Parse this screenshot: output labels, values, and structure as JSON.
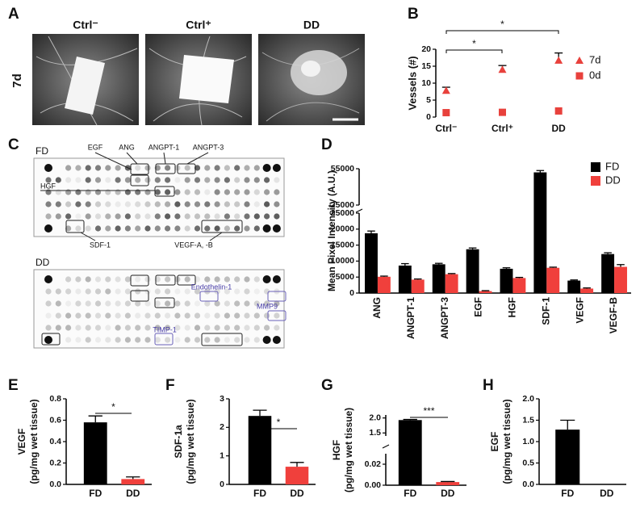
{
  "panels": {
    "A": {
      "label": "A",
      "side_label": "7d",
      "images": [
        "Ctrl⁻",
        "Ctrl⁺",
        "DD"
      ]
    },
    "C": {
      "label": "C",
      "blots": [
        {
          "name": "FD",
          "labels": [
            "EGF",
            "ANG",
            "ANGPT-1",
            "ANGPT-3",
            "HGF",
            "SDF-1",
            "VEGF-A, -B"
          ]
        },
        {
          "name": "DD",
          "labels": [
            "Endothelin-1",
            "MMP9",
            "TIMP-1"
          ]
        }
      ]
    }
  },
  "chart_data": [
    {
      "panel": "B",
      "type": "scatter",
      "ylabel": "Vessels (#)",
      "categories": [
        "Ctrl⁻",
        "Ctrl⁺",
        "DD"
      ],
      "ylim": [
        0,
        20
      ],
      "yticks": [
        0,
        5,
        10,
        15,
        20
      ],
      "series": [
        {
          "name": "7d",
          "color": "#e8413c",
          "marker": "triangle",
          "values": [
            7.8,
            14,
            16.7
          ],
          "errors": [
            1,
            1.2,
            2.2
          ]
        },
        {
          "name": "0d",
          "color": "#e8413c",
          "marker": "square",
          "values": [
            1.3,
            1.4,
            1.8
          ]
        }
      ],
      "legend": "right",
      "annotations": [
        "*",
        "*"
      ]
    },
    {
      "panel": "D",
      "type": "bar",
      "ylabel": "Mean Pixel Intensity (A.U.)",
      "categories": [
        "ANG",
        "ANGPT-1",
        "ANGPT-3",
        "EGF",
        "HGF",
        "SDF-1",
        "VEGF",
        "VEGF-B"
      ],
      "segments": [
        {
          "ylim": [
            0,
            25000
          ],
          "yticks": [
            0,
            5000,
            10000,
            15000,
            20000,
            25000
          ]
        },
        {
          "ylim": [
            25000,
            55000
          ],
          "yticks": [
            25000,
            55000
          ]
        }
      ],
      "series": [
        {
          "name": "FD",
          "color": "#000000",
          "values": [
            18700,
            8600,
            9000,
            13700,
            7600,
            52000,
            3900,
            12200
          ],
          "errors": [
            700,
            600,
            300,
            400,
            300,
            1500,
            200,
            400
          ]
        },
        {
          "name": "DD",
          "color": "#f0403c",
          "values": [
            5100,
            4200,
            5900,
            600,
            4700,
            7900,
            1400,
            8200
          ],
          "errors": [
            200,
            200,
            200,
            150,
            200,
            200,
            200,
            700
          ]
        }
      ],
      "legend": "upper right"
    },
    {
      "panel": "E",
      "type": "bar",
      "ylabel": [
        "VEGF",
        "(pg/mg wet tissue)"
      ],
      "categories": [
        "FD",
        "DD"
      ],
      "ylim": [
        0,
        0.8
      ],
      "yticks": [
        {
          "value": 0,
          "label": "0.0"
        },
        0.2,
        0.4,
        0.6,
        0.8
      ],
      "series": [
        {
          "colors": [
            "#000000",
            "#f0403c"
          ],
          "values": [
            0.58,
            0.05
          ],
          "errors": [
            0.06,
            0.02
          ]
        }
      ],
      "annotations": [
        "*"
      ]
    },
    {
      "panel": "F",
      "type": "bar",
      "ylabel": [
        "SDF-1a",
        "(pg/mg wet tissue)"
      ],
      "categories": [
        "FD",
        "DD"
      ],
      "ylim": [
        0,
        3
      ],
      "yticks": [
        0,
        1,
        2,
        3
      ],
      "series": [
        {
          "colors": [
            "#000000",
            "#f0403c"
          ],
          "values": [
            2.4,
            0.62
          ],
          "errors": [
            0.2,
            0.15
          ]
        }
      ],
      "annotations": [
        "*"
      ]
    },
    {
      "panel": "G",
      "type": "bar",
      "ylabel": [
        "HGF",
        "(pg/mg wet tissue)"
      ],
      "categories": [
        "FD",
        "DD"
      ],
      "segments": [
        {
          "ylim": [
            0,
            0.03
          ],
          "yticks": [
            {
              "value": 0,
              "label": "0.00"
            },
            0.02
          ]
        },
        {
          "ylim": [
            1.4,
            2.1
          ],
          "yticks": [
            1.5,
            {
              "value": 2,
              "label": "2.0"
            }
          ]
        }
      ],
      "series": [
        {
          "colors": [
            "#000000",
            "#f0403c"
          ],
          "values": [
            1.93,
            0.003
          ],
          "errors": [
            0.02,
            0.0005
          ]
        }
      ],
      "annotations": [
        "***"
      ]
    },
    {
      "panel": "H",
      "type": "bar",
      "ylabel": [
        "EGF",
        "(pg/mg wet tissue)"
      ],
      "categories": [
        "FD",
        "DD"
      ],
      "ylim": [
        0,
        2
      ],
      "yticks": [
        {
          "value": 0,
          "label": "0.0"
        },
        0.5,
        {
          "value": 1,
          "label": "1.0"
        },
        1.5,
        {
          "value": 2,
          "label": "2.0"
        }
      ],
      "series": [
        {
          "colors": [
            "#000000",
            "#f0403c"
          ],
          "values": [
            1.28,
            0
          ],
          "errors": [
            0.22,
            0
          ]
        }
      ]
    }
  ]
}
